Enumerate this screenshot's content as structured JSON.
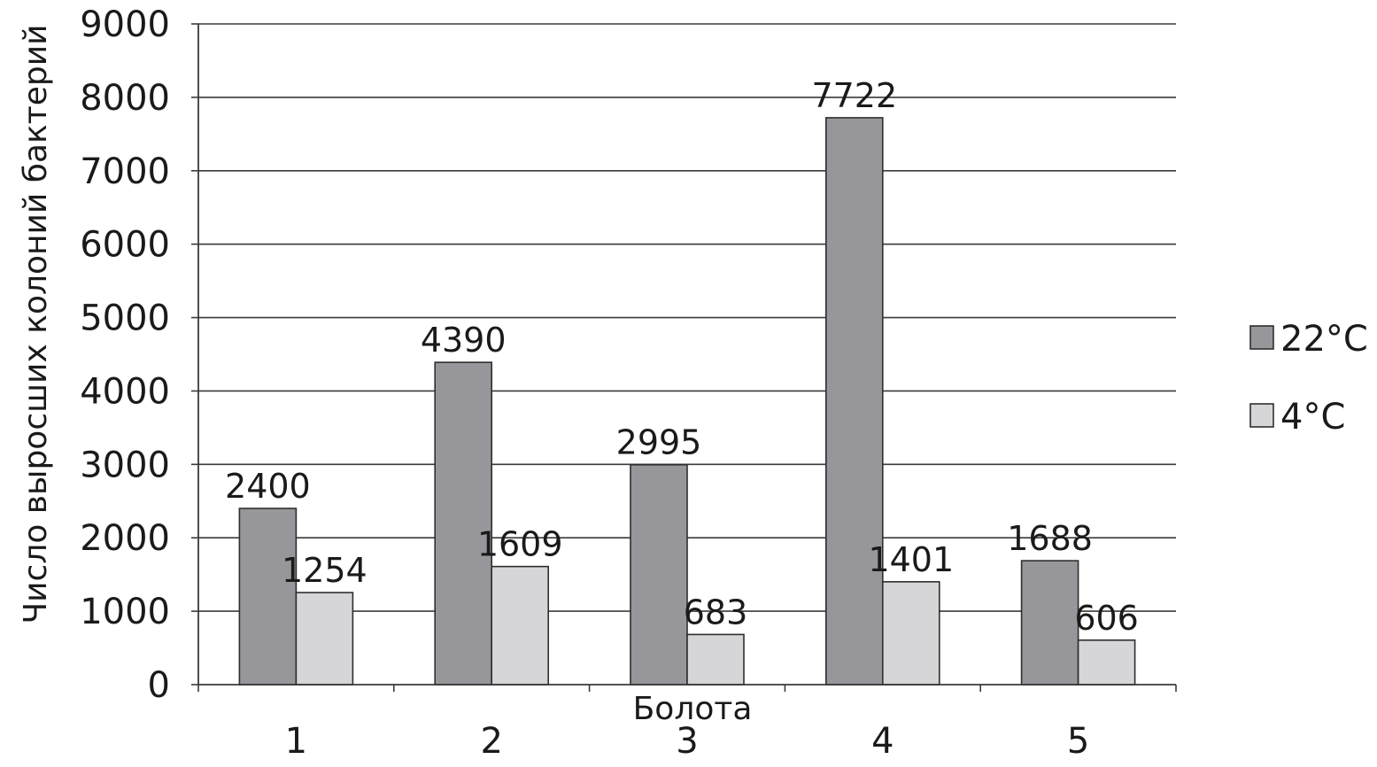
{
  "chart_data": {
    "type": "bar",
    "categories": [
      "1",
      "2",
      "3",
      "4",
      "5"
    ],
    "series": [
      {
        "name": "22°C",
        "values": [
          2400,
          4390,
          2995,
          7722,
          1688
        ],
        "color": "#97979b"
      },
      {
        "name": "4°C",
        "values": [
          1254,
          1609,
          683,
          1401,
          606
        ],
        "color": "#d6d6d8"
      }
    ],
    "data_labels": [
      [
        "2400",
        "4390",
        "2995",
        "7722",
        "1688"
      ],
      [
        "1254",
        "1609",
        "683",
        "1401",
        "606"
      ]
    ],
    "yticks": [
      "0",
      "1000",
      "2000",
      "3000",
      "4000",
      "5000",
      "6000",
      "7000",
      "8000",
      "9000"
    ],
    "ylim": [
      0,
      9000
    ],
    "xlabel": "Болота",
    "ylabel": "Число выросших колоний бактерий",
    "grid": true,
    "legend_position": "right"
  }
}
